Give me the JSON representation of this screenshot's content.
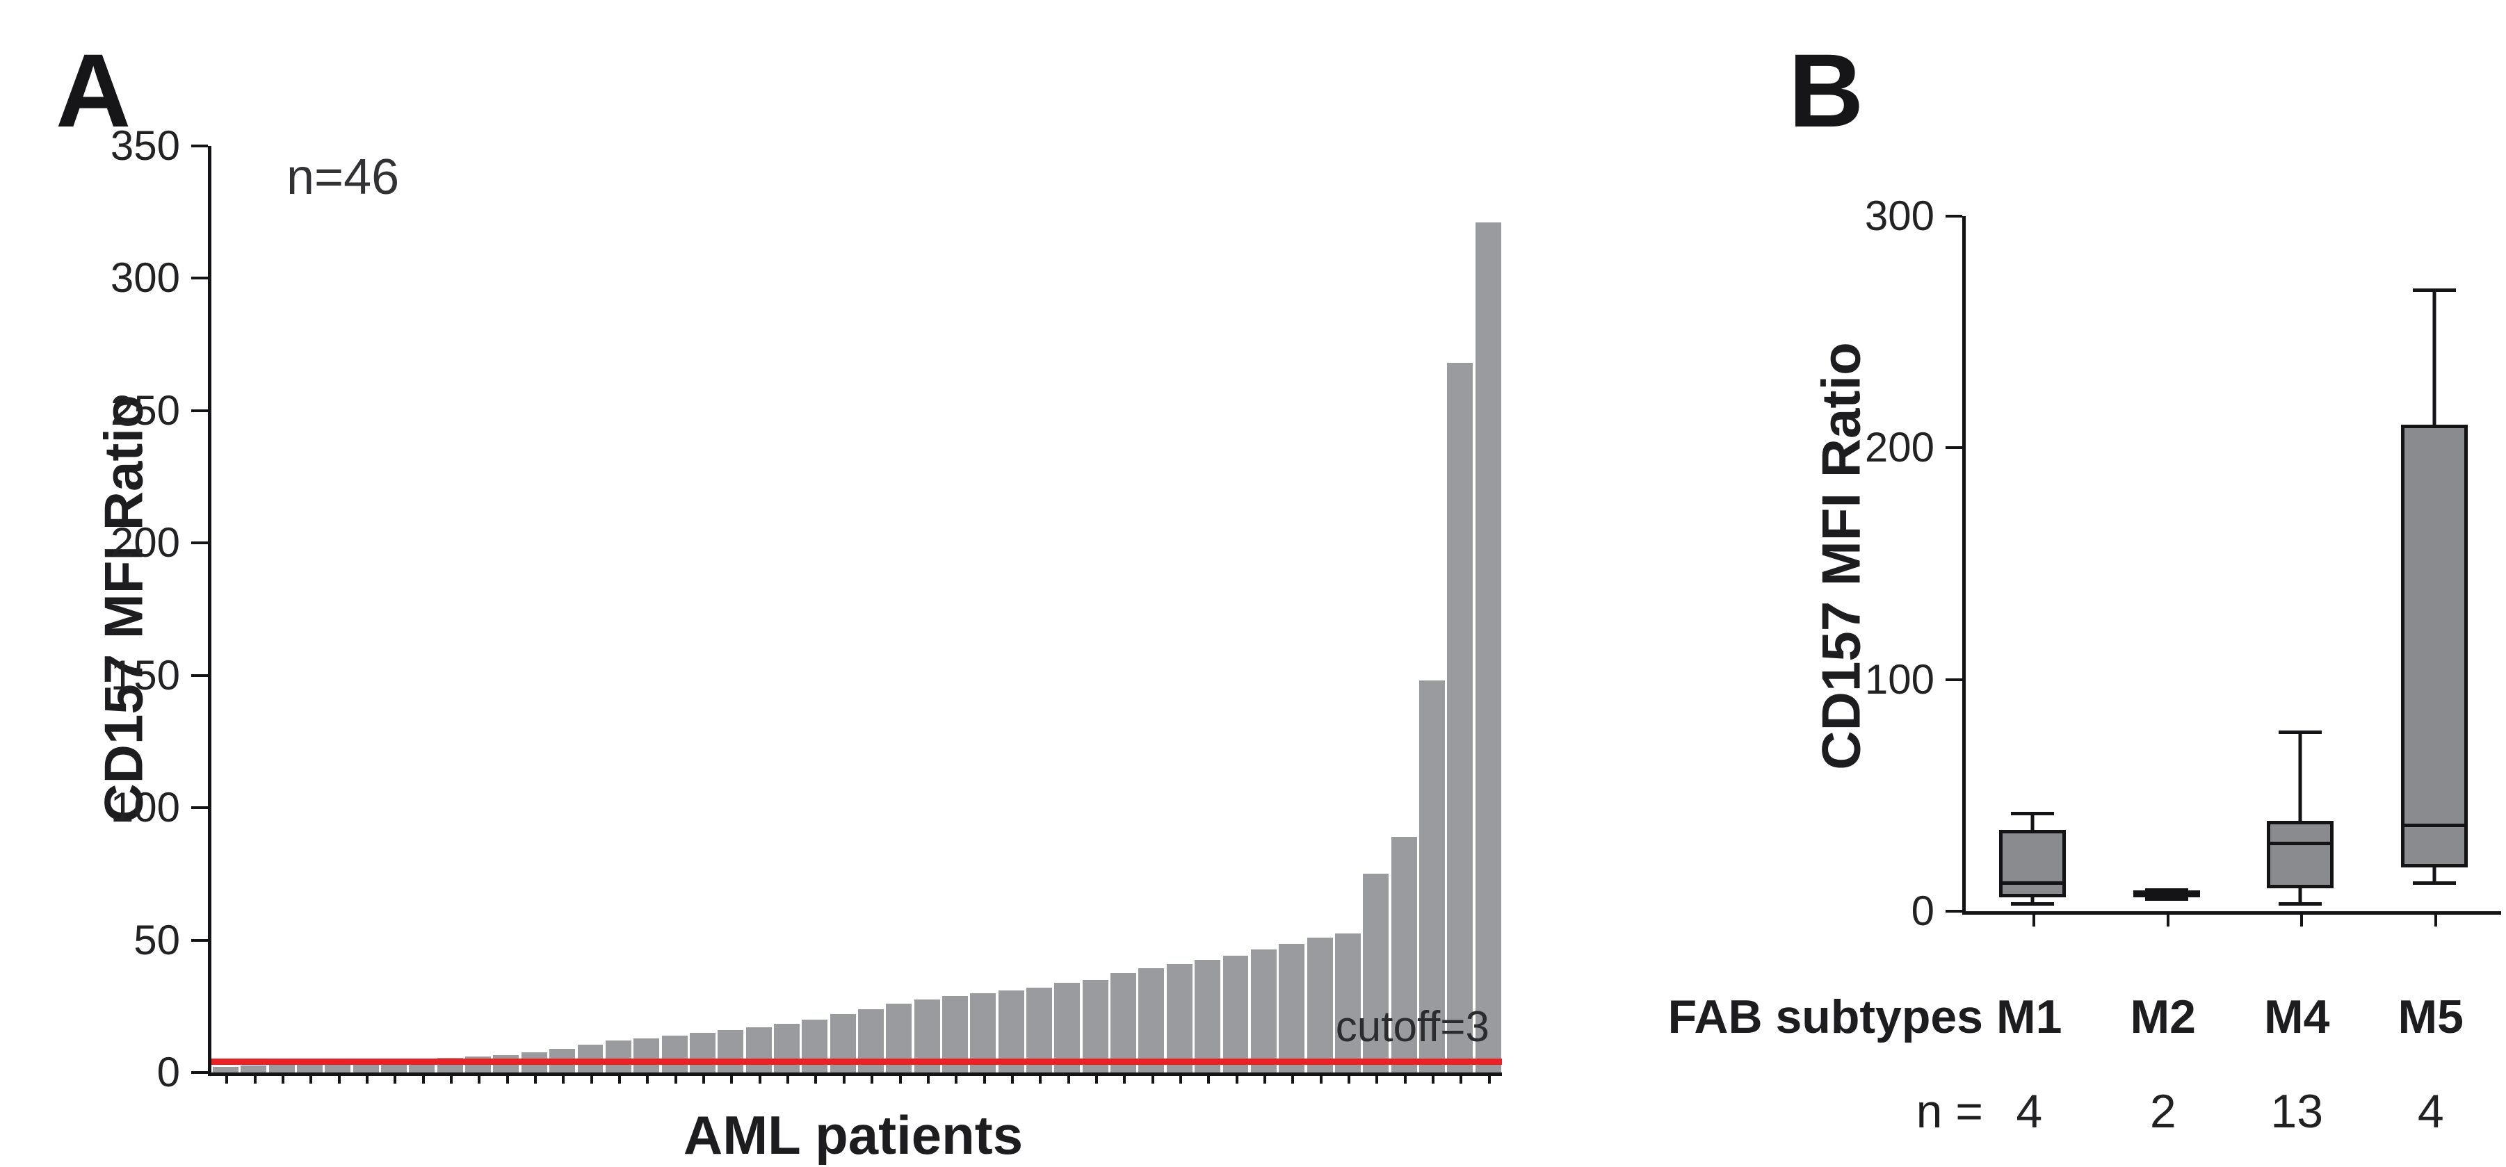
{
  "panels": {
    "a": "A",
    "b": "B"
  },
  "chart_data": [
    {
      "id": "A",
      "type": "bar",
      "title": "",
      "xlabel": "AML patients",
      "ylabel": "CD157 MFI Ratio",
      "annotation": "n=46",
      "n_patients": 46,
      "ylim": [
        0,
        350
      ],
      "yticks": [
        0,
        50,
        100,
        150,
        200,
        250,
        300,
        350
      ],
      "grid": false,
      "bar_color": "#9a9b9e",
      "cutoff": {
        "value": 3,
        "label": "cutoff=3",
        "color": "#ed2024"
      },
      "values": [
        2,
        2.5,
        3,
        3,
        3.5,
        4,
        4.5,
        5,
        5.5,
        6,
        6.5,
        7.5,
        9,
        10.5,
        12,
        13,
        14,
        15,
        16,
        17,
        18.5,
        20,
        22,
        24,
        26,
        27.5,
        29,
        30,
        31,
        32,
        34,
        35,
        37.5,
        39.5,
        41,
        42.5,
        44,
        46.5,
        48.5,
        51,
        52.5,
        75,
        89,
        148,
        268,
        321
      ]
    },
    {
      "id": "B",
      "type": "box",
      "title": "",
      "ylabel": "CD157 MFI Ratio",
      "ylim": [
        0,
        300
      ],
      "yticks": [
        0,
        100,
        200,
        300
      ],
      "grid": false,
      "box_color": "#8a8b8e",
      "categories": [
        "M1",
        "M2",
        "M4",
        "M5"
      ],
      "category_row_label": "FAB subtypes",
      "n_row_label": "n =",
      "n_values": [
        4,
        2,
        13,
        4
      ],
      "series": [
        {
          "name": "M1",
          "min": 3,
          "q1": 6,
          "median": 12,
          "q3": 35,
          "max": 42
        },
        {
          "name": "M2",
          "min": 5,
          "q1": 6,
          "median": 7,
          "q3": 8,
          "max": 9
        },
        {
          "name": "M4",
          "min": 3,
          "q1": 10,
          "median": 29,
          "q3": 39,
          "max": 77
        },
        {
          "name": "M5",
          "min": 12,
          "q1": 19,
          "median": 37,
          "q3": 210,
          "max": 268
        }
      ]
    }
  ]
}
